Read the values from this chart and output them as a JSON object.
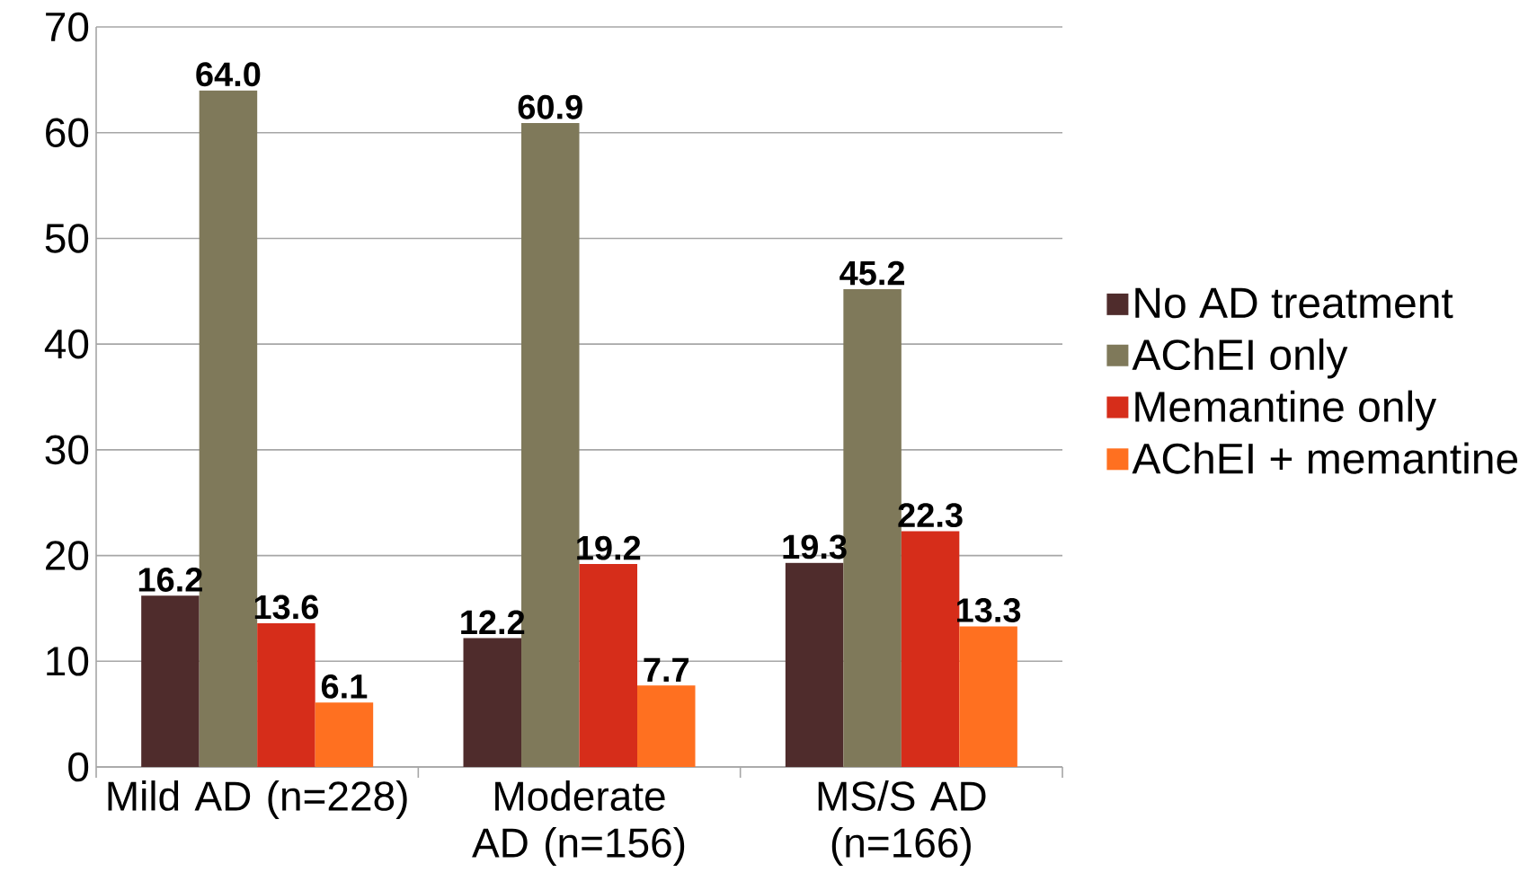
{
  "chart_data": {
    "type": "bar",
    "categories": [
      "Mild AD (n=228)",
      "Moderate AD (n=156)",
      "MS/S AD (n=166)"
    ],
    "series": [
      {
        "name": "No AD treatment",
        "color": "#4f2c2c",
        "values": [
          16.2,
          12.2,
          19.3
        ],
        "value_labels": [
          "16.2",
          "12.2",
          "19.3"
        ]
      },
      {
        "name": "AChEI only",
        "color": "#7f795a",
        "values": [
          64.0,
          60.9,
          45.2
        ],
        "value_labels": [
          "64.0",
          "60.9",
          "45.2"
        ]
      },
      {
        "name": "Memantine only",
        "color": "#d62d1a",
        "values": [
          13.6,
          19.2,
          22.3
        ],
        "value_labels": [
          "13.6",
          "19.2",
          "22.3"
        ]
      },
      {
        "name": "AChEI + memantine",
        "color": "#ff7020",
        "values": [
          6.1,
          7.7,
          13.3
        ],
        "value_labels": [
          "6.1",
          "7.7",
          "13.3"
        ]
      }
    ],
    "ylim": [
      0,
      70
    ],
    "yticks": [
      0,
      10,
      20,
      30,
      40,
      50,
      60,
      70
    ],
    "grid": "y",
    "legend": "right"
  }
}
